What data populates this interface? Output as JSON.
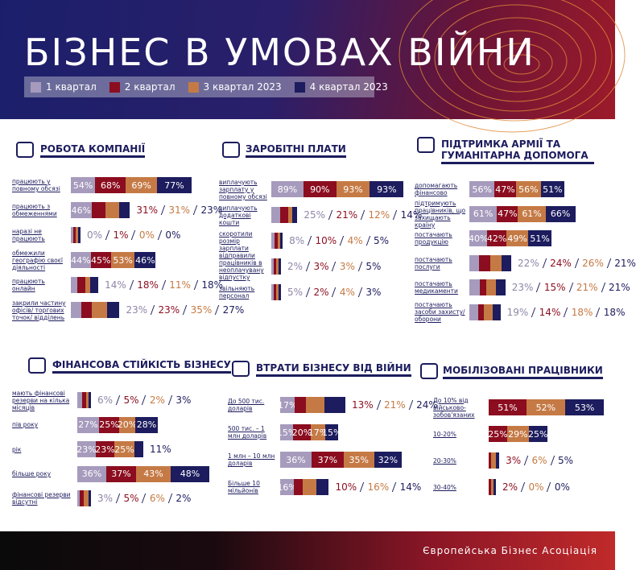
{
  "header": {
    "title": "БІЗНЕС В УМОВАХ ВІЙНИ",
    "legend": [
      {
        "name": "1 квартал",
        "color": "#a69bbd"
      },
      {
        "name": "2 квартал",
        "color": "#8b0d1f"
      },
      {
        "name": "3 квартал 2023",
        "color": "#c57a45"
      },
      {
        "name": "4 квартал 2023",
        "color": "#1c1c5e"
      }
    ]
  },
  "panels": [
    {
      "title": "РОБОТА КОМПАНІЇ",
      "rows": [
        {
          "label": "працюють у повному обсязі",
          "values": [
            54,
            68,
            69,
            77
          ],
          "value_labels": [
            "54%",
            "68%",
            "69%",
            "77%"
          ]
        },
        {
          "label": "працюють з обмеженнями",
          "values": [
            46,
            31,
            31,
            23
          ],
          "value_labels": [
            "46%",
            "31%",
            "31%",
            "23%"
          ]
        },
        {
          "label": "наразі не працюють",
          "values": [
            0,
            1,
            0,
            0
          ],
          "value_labels": [
            "0%",
            "1%",
            "0%",
            "0%"
          ]
        },
        {
          "label": "обмежили географію своєї діяльності",
          "values": [
            44,
            45,
            53,
            46
          ],
          "value_labels": [
            "44%",
            "45%",
            "53%",
            "46%"
          ]
        },
        {
          "label": "працюють онлайн",
          "values": [
            14,
            18,
            11,
            18
          ],
          "value_labels": [
            "14%",
            "18%",
            "11%",
            "18%"
          ]
        },
        {
          "label": "закрили частину офісів/ торгових точок/ відділень",
          "values": [
            23,
            23,
            35,
            27
          ],
          "value_labels": [
            "23%",
            "23%",
            "35%",
            "27%"
          ]
        }
      ]
    },
    {
      "title": "ЗАРОБІТНІ ПЛАТИ",
      "rows": [
        {
          "label": "виплачують зарплату у повному обсязі",
          "values": [
            89,
            90,
            93,
            93
          ],
          "value_labels": [
            "89%",
            "90%",
            "93%",
            "93%"
          ]
        },
        {
          "label": "виплачують додаткові кошти",
          "values": [
            25,
            21,
            12,
            14
          ],
          "value_labels": [
            "25%",
            "21%",
            "12%",
            "14%"
          ]
        },
        {
          "label": "скоротили розмір зарплати",
          "values": [
            8,
            10,
            4,
            5
          ],
          "value_labels": [
            "8%",
            "10%",
            "4%",
            "5%"
          ]
        },
        {
          "label": "відправили працівників в неоплачувану відпустку",
          "values": [
            2,
            3,
            3,
            5
          ],
          "value_labels": [
            "2%",
            "3%",
            "3%",
            "5%"
          ]
        },
        {
          "label": "звільняють персонал",
          "values": [
            5,
            2,
            4,
            3
          ],
          "value_labels": [
            "5%",
            "2%",
            "4%",
            "3%"
          ]
        }
      ]
    },
    {
      "title": "ПІДТРИМКА АРМІЇ ТА ГУМАНІТАРНА ДОПОМОГА",
      "rows": [
        {
          "label": "допомагають фінансово",
          "values": [
            56,
            47,
            56,
            51
          ],
          "value_labels": [
            "56%",
            "47%",
            "56%",
            "51%"
          ]
        },
        {
          "label": "підтримують працівників, що захищають країну",
          "values": [
            61,
            47,
            61,
            66
          ],
          "value_labels": [
            "61%",
            "47%",
            "61%",
            "66%"
          ]
        },
        {
          "label": "постачають продукцію",
          "values": [
            40,
            42,
            49,
            51
          ],
          "value_labels": [
            "40%",
            "42%",
            "49%",
            "51%"
          ]
        },
        {
          "label": "постачають послуги",
          "values": [
            22,
            24,
            26,
            21
          ],
          "value_labels": [
            "22%",
            "24%",
            "26%",
            "21%"
          ]
        },
        {
          "label": "постачають медикаменти",
          "values": [
            23,
            15,
            21,
            21
          ],
          "value_labels": [
            "23%",
            "15%",
            "21%",
            "21%"
          ]
        },
        {
          "label": "постачають засоби захисту/ оборони",
          "values": [
            19,
            14,
            18,
            18
          ],
          "value_labels": [
            "19%",
            "14%",
            "18%",
            "18%"
          ]
        }
      ]
    },
    {
      "title": "ФІНАНСОВА СТІЙКІСТЬ БІЗНЕСУ",
      "rows": [
        {
          "label": "мають фінансові резерви на кілька місяців",
          "values": [
            6,
            5,
            2,
            3
          ],
          "value_labels": [
            "6%",
            "5%",
            "2%",
            "3%"
          ]
        },
        {
          "label": "пів року",
          "values": [
            27,
            25,
            20,
            28
          ],
          "value_labels": [
            "27%",
            "25%",
            "20%",
            "28%"
          ]
        },
        {
          "label": "рік",
          "values": [
            23,
            23,
            25,
            11
          ],
          "value_labels": [
            "23%",
            "23%",
            "25%",
            "11%"
          ]
        },
        {
          "label": "більше року",
          "values": [
            36,
            37,
            43,
            48
          ],
          "value_labels": [
            "36%",
            "37%",
            "43%",
            "48%"
          ]
        },
        {
          "label": "фінансові резерви відсутні",
          "values": [
            3,
            5,
            6,
            2
          ],
          "value_labels": [
            "3%",
            "5%",
            "6%",
            "2%"
          ]
        }
      ]
    },
    {
      "title": "ВТРАТИ БІЗНЕСУ ВІД ВІЙНИ",
      "rows": [
        {
          "label": "До 500 тис. доларів",
          "values": [
            17,
            13,
            21,
            24
          ],
          "value_labels": [
            "17%",
            "13%",
            "21%",
            "24%"
          ]
        },
        {
          "label": "500 тис. – 1 млн доларів",
          "values": [
            15,
            20,
            17,
            15
          ],
          "value_labels": [
            "15%",
            "20%",
            "17%",
            "15%"
          ]
        },
        {
          "label": "1 млн – 10 млн доларів",
          "values": [
            36,
            37,
            35,
            32
          ],
          "value_labels": [
            "36%",
            "37%",
            "35%",
            "32%"
          ]
        },
        {
          "label": "Більше 10 мільйонів",
          "values": [
            16,
            10,
            16,
            14
          ],
          "value_labels": [
            "16%",
            "10%",
            "16%",
            "14%"
          ]
        }
      ]
    },
    {
      "title": "МОБІЛІЗОВАНІ ПРАЦІВНИКИ",
      "rows": [
        {
          "label": "До 10% від військово-зобов'язаних",
          "values": [
            null,
            51,
            52,
            53
          ],
          "value_labels": [
            null,
            "51%",
            "52%",
            "53%"
          ]
        },
        {
          "label": "10-20%",
          "values": [
            null,
            25,
            29,
            25
          ],
          "value_labels": [
            null,
            "25%",
            "29%",
            "25%"
          ]
        },
        {
          "label": "20-30%",
          "values": [
            null,
            3,
            6,
            5
          ],
          "value_labels": [
            null,
            "3%",
            "6%",
            "5%"
          ]
        },
        {
          "label": "30-40%",
          "values": [
            null,
            2,
            0,
            0
          ],
          "value_labels": [
            null,
            "2%",
            "0%",
            "0%"
          ]
        }
      ]
    }
  ],
  "footer": "Європейська Бізнес Асоціація"
}
